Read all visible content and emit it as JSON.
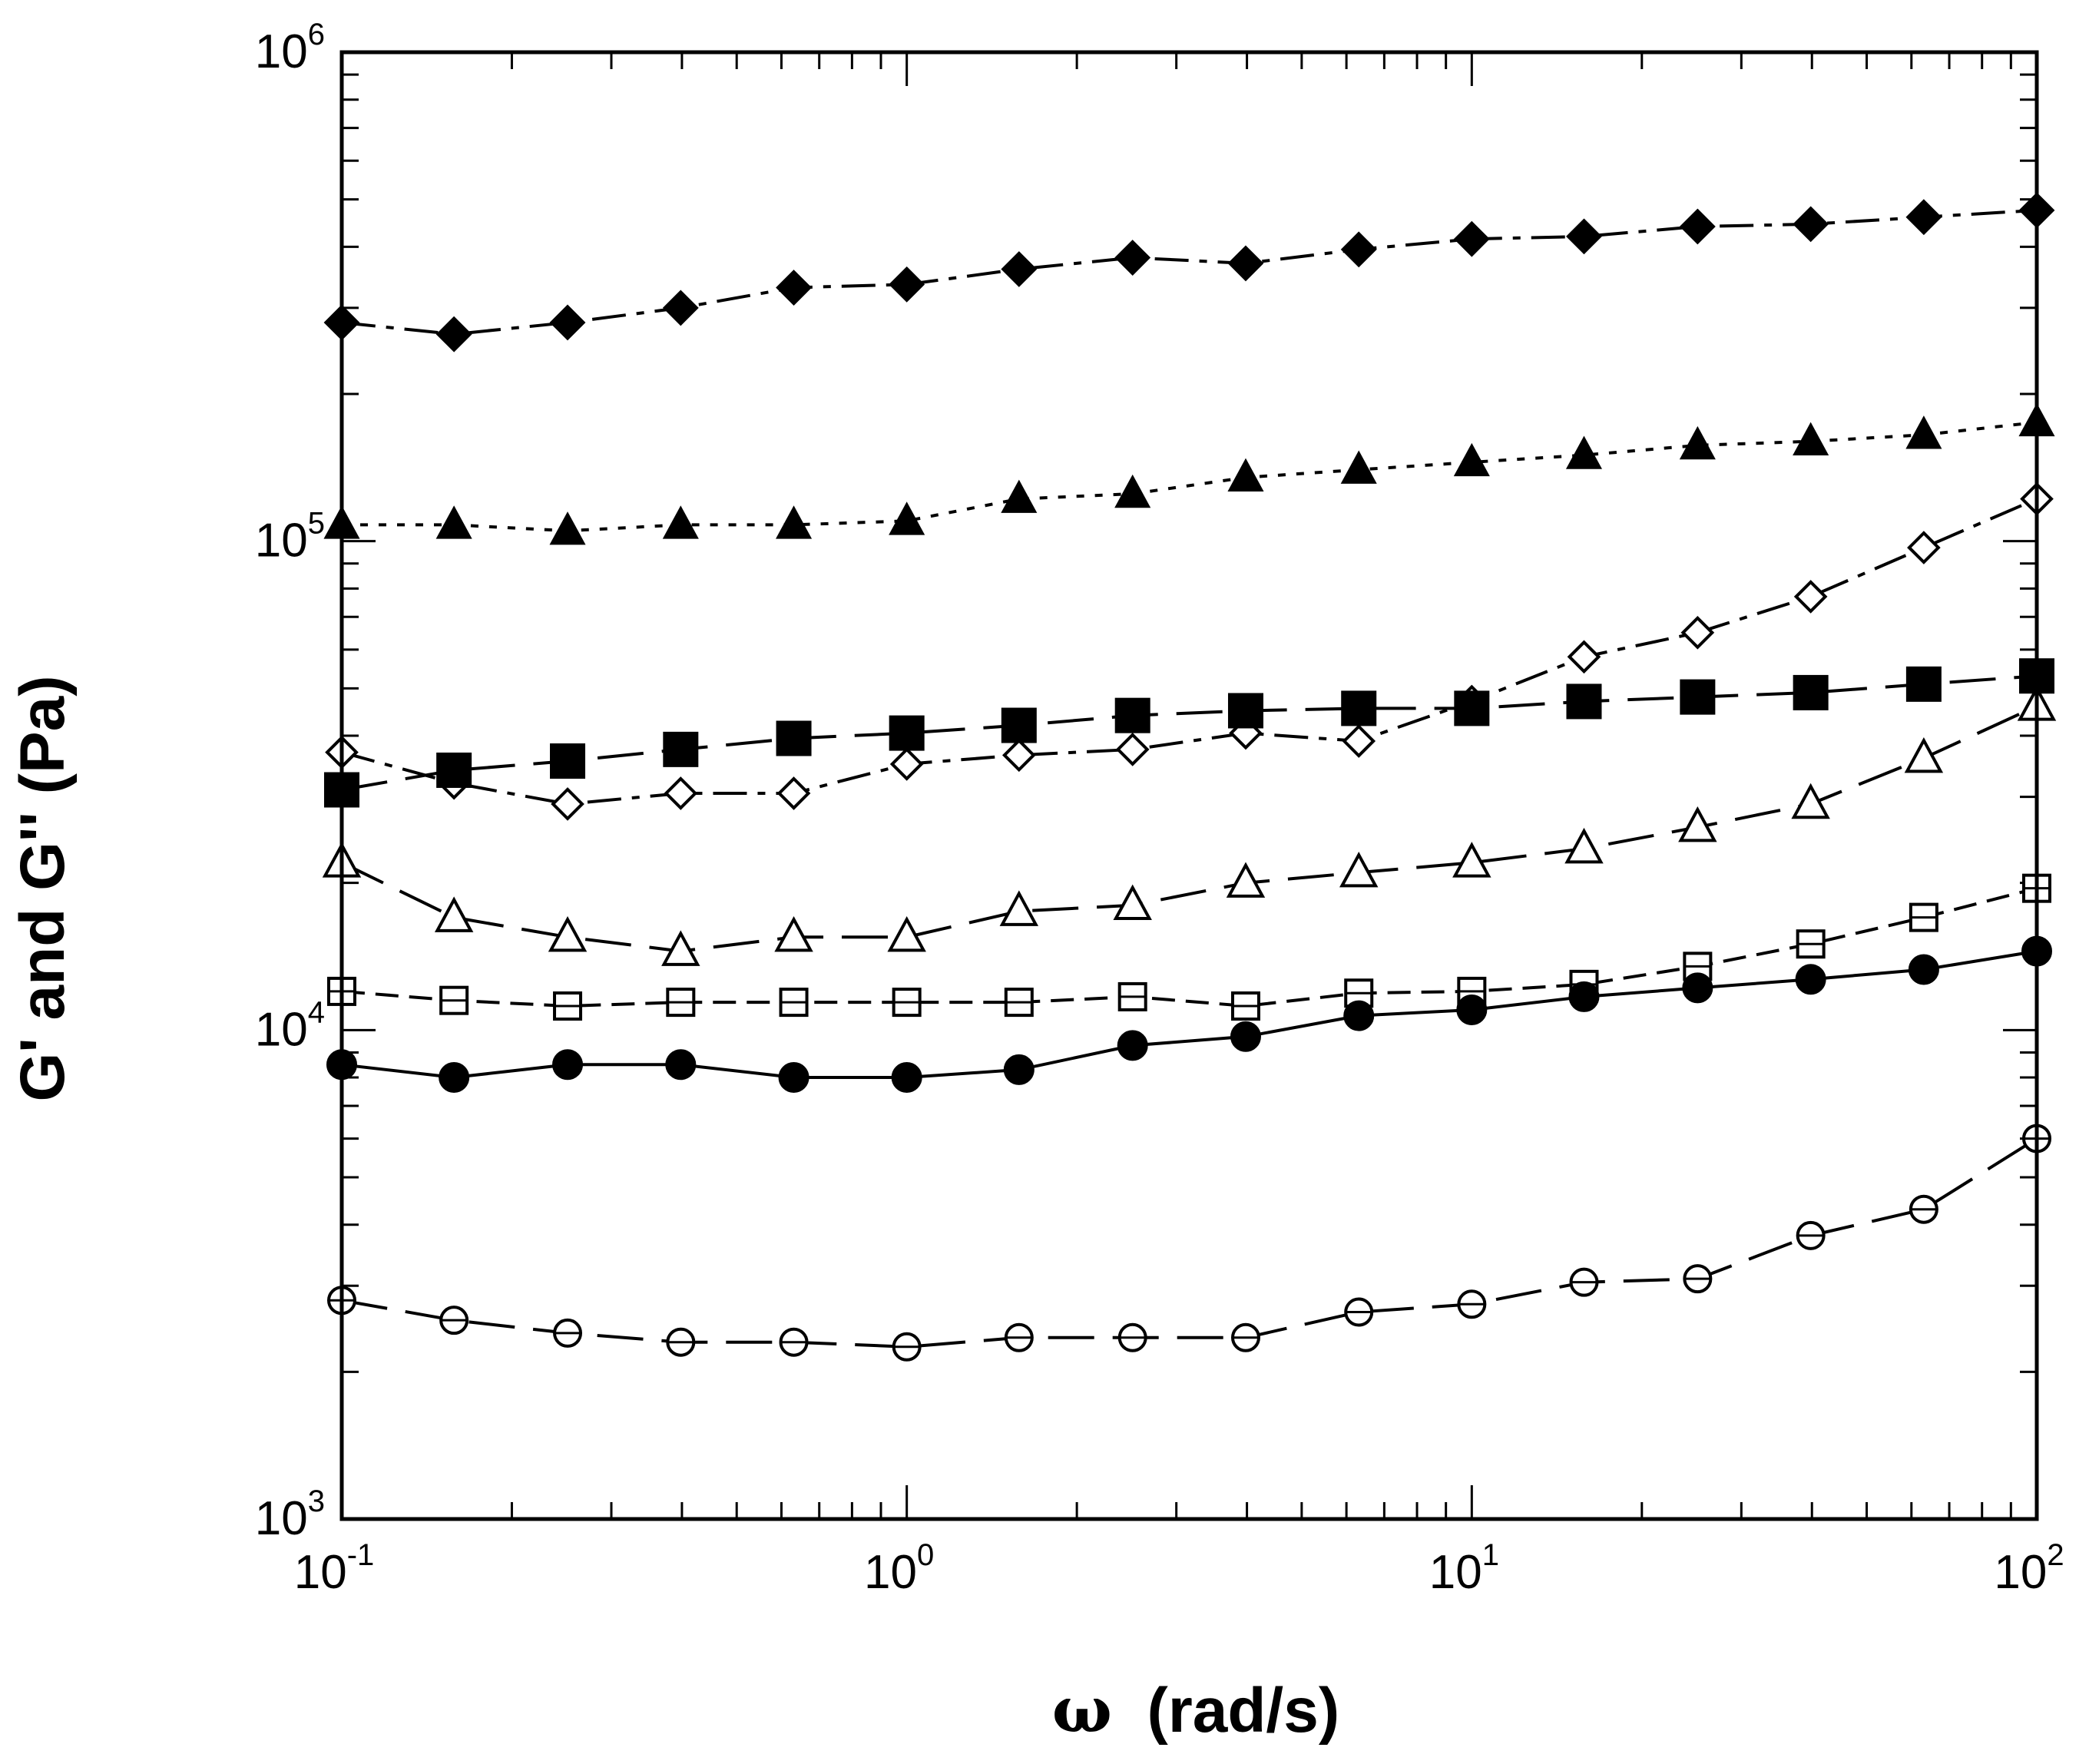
{
  "chart_data": {
    "type": "scatter",
    "title": "",
    "xlabel": "ω (rad/s)",
    "ylabel": "G' and G'' (Pa)",
    "xscale": "log",
    "yscale": "log",
    "xlim": [
      0.1,
      100
    ],
    "ylim": [
      1000,
      1000000
    ],
    "grid": false,
    "legend": "none",
    "x_ticks": [
      {
        "base": "10",
        "exp": "-1",
        "value": 0.1
      },
      {
        "base": "10",
        "exp": "0",
        "value": 1
      },
      {
        "base": "10",
        "exp": "1",
        "value": 10
      },
      {
        "base": "10",
        "exp": "2",
        "value": 100
      }
    ],
    "y_ticks": [
      {
        "base": "10",
        "exp": "3",
        "value": 1000
      },
      {
        "base": "10",
        "exp": "4",
        "value": 10000
      },
      {
        "base": "10",
        "exp": "5",
        "value": 100000
      },
      {
        "base": "10",
        "exp": "6",
        "value": 1000000
      }
    ],
    "x": [
      0.1,
      0.158,
      0.251,
      0.398,
      0.631,
      1.0,
      1.58,
      2.51,
      3.98,
      6.31,
      10.0,
      15.8,
      25.1,
      39.8,
      63.1,
      100.0
    ],
    "series": [
      {
        "marker": "diamond",
        "filled": true,
        "line": "dash-dot",
        "values": [
          280000,
          265000,
          280000,
          300000,
          330000,
          335000,
          360000,
          380000,
          370000,
          395000,
          415000,
          420000,
          440000,
          445000,
          460000,
          475000
        ]
      },
      {
        "marker": "triangle",
        "filled": true,
        "line": "dotted",
        "values": [
          108000,
          108000,
          105000,
          108000,
          108000,
          110000,
          122000,
          125000,
          135000,
          140000,
          145000,
          150000,
          157000,
          160000,
          165000,
          175000
        ]
      },
      {
        "marker": "diamond",
        "filled": false,
        "line": "dash-dot",
        "values": [
          37000,
          32000,
          29000,
          30500,
          30500,
          35000,
          36500,
          37500,
          40500,
          39000,
          47000,
          58000,
          65000,
          77000,
          97000,
          122000
        ]
      },
      {
        "marker": "square",
        "filled": true,
        "line": "long-dash",
        "values": [
          31000,
          34000,
          35500,
          37500,
          39500,
          40500,
          42000,
          44000,
          45000,
          45500,
          45500,
          47000,
          48000,
          49000,
          51000,
          53000
        ]
      },
      {
        "marker": "triangle",
        "filled": false,
        "line": "long-dash",
        "values": [
          22000,
          17000,
          15500,
          14500,
          15500,
          15500,
          17500,
          18000,
          20000,
          21000,
          22000,
          23500,
          26000,
          29000,
          36000,
          46000
        ]
      },
      {
        "marker": "square",
        "filled": false,
        "line": "dashed",
        "values": [
          12000,
          11500,
          11200,
          11400,
          11400,
          11400,
          11400,
          11700,
          11200,
          11900,
          12000,
          12400,
          13500,
          15000,
          17000,
          19500
        ]
      },
      {
        "marker": "circle",
        "filled": true,
        "line": "solid",
        "values": [
          8500,
          8000,
          8500,
          8500,
          8000,
          8000,
          8300,
          9300,
          9700,
          10700,
          11000,
          11700,
          12200,
          12700,
          13300,
          14500
        ]
      },
      {
        "marker": "circle",
        "filled": false,
        "line": "long-dash",
        "values": [
          2800,
          2550,
          2400,
          2300,
          2300,
          2250,
          2350,
          2350,
          2350,
          2650,
          2750,
          3050,
          3100,
          3800,
          4300,
          6000
        ]
      }
    ]
  }
}
